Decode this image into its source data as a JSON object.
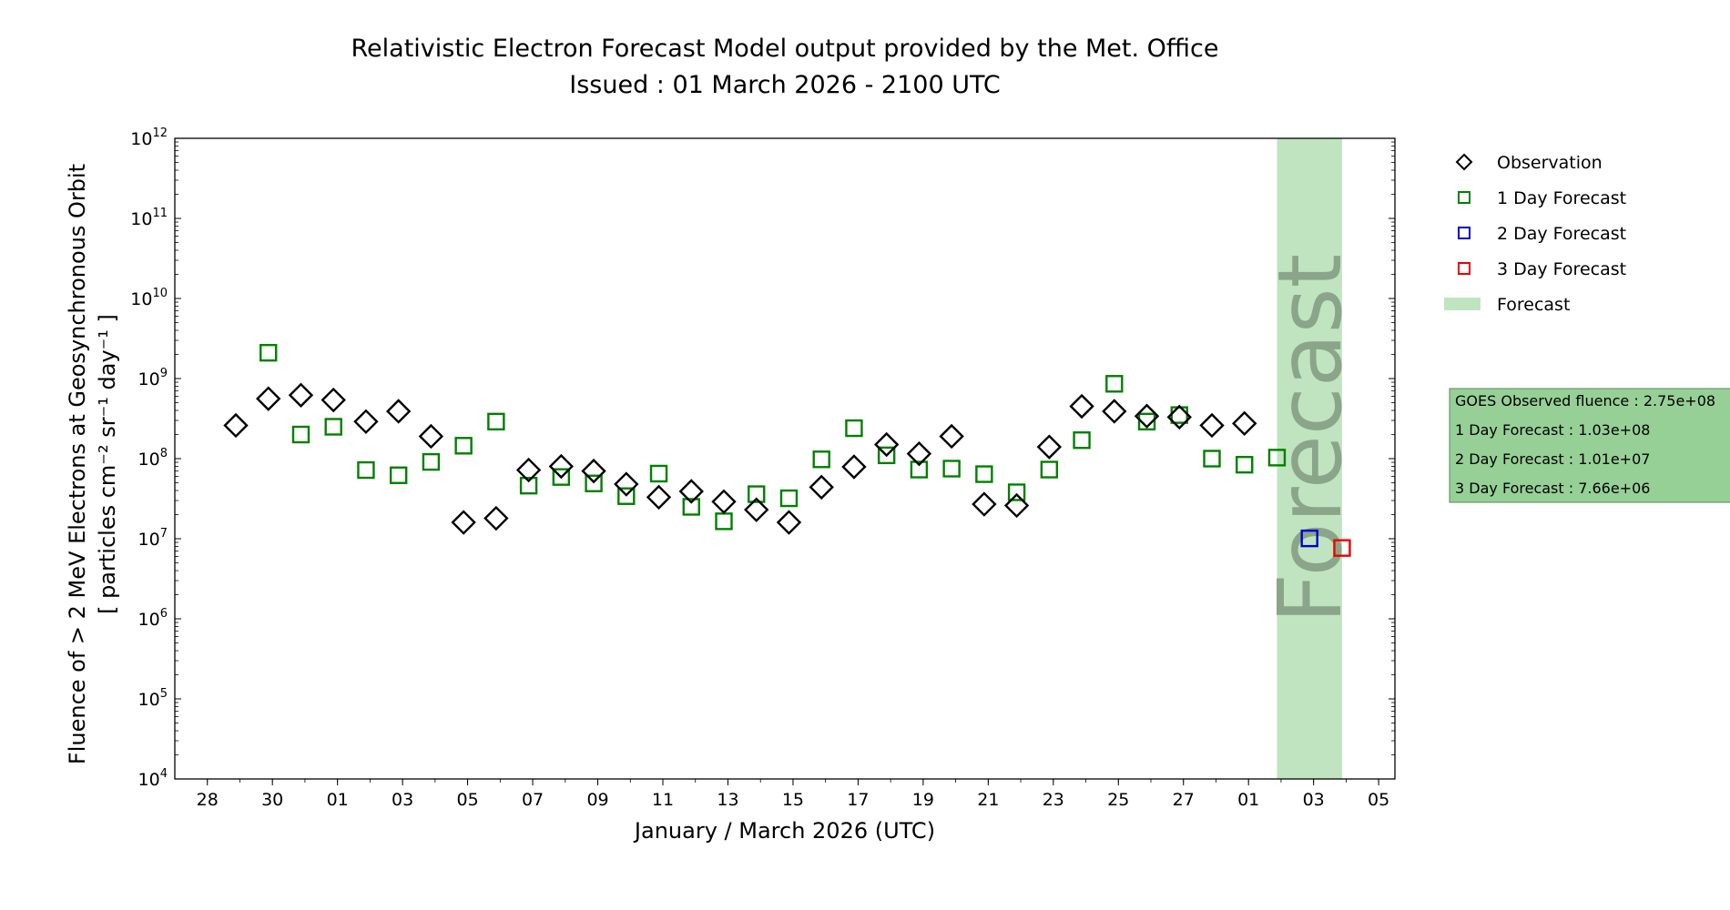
{
  "title": "Relativistic Electron Forecast Model output provided by the Met. Office",
  "subtitle": "Issued : 01 March 2026 - 2100 UTC",
  "watermark": "Forecast",
  "info_box": {
    "lines": [
      "GOES Observed fluence : 2.75e+08",
      "1 Day Forecast : 1.03e+08",
      "2 Day Forecast : 1.01e+07",
      "3 Day Forecast : 7.66e+06"
    ]
  },
  "colors": {
    "observation": "#000000",
    "day1": "#008000",
    "day2": "#0000cc",
    "day3": "#ee0000",
    "forecast_band": "#c0e4c0",
    "info_box_fill": "#96d096",
    "watermark": "#8aa58a"
  },
  "chart_data": {
    "type": "scatter",
    "xlabel": "January / March 2026 (UTC)",
    "ylabel_line1": "Fluence of > 2 MeV Electrons at Geosynchronous Orbit",
    "ylabel_line2": "[ particles cm⁻² sr⁻¹ day⁻¹ ]",
    "y_scale": "log",
    "ylim": [
      10000,
      1000000000000
    ],
    "y_ticks": [
      {
        "base": "10",
        "exp": "4"
      },
      {
        "base": "10",
        "exp": "5"
      },
      {
        "base": "10",
        "exp": "6"
      },
      {
        "base": "10",
        "exp": "7"
      },
      {
        "base": "10",
        "exp": "8"
      },
      {
        "base": "10",
        "exp": "9"
      },
      {
        "base": "10",
        "exp": "10"
      },
      {
        "base": "10",
        "exp": "11"
      },
      {
        "base": "10",
        "exp": "12"
      }
    ],
    "xlim": [
      "2026-01-27T00:00",
      "2026-03-05T12:00"
    ],
    "x_ticks": [
      {
        "date": "2026-01-28",
        "label": "28"
      },
      {
        "date": "2026-01-30",
        "label": "30"
      },
      {
        "date": "2026-02-01",
        "label": "01"
      },
      {
        "date": "2026-02-03",
        "label": "03"
      },
      {
        "date": "2026-02-05",
        "label": "05"
      },
      {
        "date": "2026-02-07",
        "label": "07"
      },
      {
        "date": "2026-02-09",
        "label": "09"
      },
      {
        "date": "2026-02-11",
        "label": "11"
      },
      {
        "date": "2026-02-13",
        "label": "13"
      },
      {
        "date": "2026-02-15",
        "label": "15"
      },
      {
        "date": "2026-02-17",
        "label": "17"
      },
      {
        "date": "2026-02-19",
        "label": "19"
      },
      {
        "date": "2026-02-21",
        "label": "21"
      },
      {
        "date": "2026-02-23",
        "label": "23"
      },
      {
        "date": "2026-02-25",
        "label": "25"
      },
      {
        "date": "2026-02-27",
        "label": "27"
      },
      {
        "date": "2026-03-01",
        "label": "01"
      },
      {
        "date": "2026-03-03",
        "label": "03"
      },
      {
        "date": "2026-03-05",
        "label": "05"
      }
    ],
    "forecast_region": [
      "2026-03-01T21:00",
      "2026-03-03T21:00"
    ],
    "legend": [
      {
        "label": "Observation",
        "marker": "diamond",
        "color": "#000000"
      },
      {
        "label": "1 Day Forecast",
        "marker": "square",
        "color": "#008000"
      },
      {
        "label": "2 Day Forecast",
        "marker": "square",
        "color": "#0000cc"
      },
      {
        "label": "3 Day Forecast",
        "marker": "square",
        "color": "#ee0000"
      },
      {
        "label": "Forecast",
        "marker": "band",
        "color": "#c0e4c0"
      }
    ],
    "series": [
      {
        "name": "Observation",
        "marker": "diamond",
        "color": "#000000",
        "points": [
          {
            "x": "2026-01-28T21:00",
            "y": 260000000.0
          },
          {
            "x": "2026-01-29T21:00",
            "y": 560000000.0
          },
          {
            "x": "2026-01-30T21:00",
            "y": 620000000.0
          },
          {
            "x": "2026-01-31T21:00",
            "y": 540000000.0
          },
          {
            "x": "2026-02-01T21:00",
            "y": 290000000.0
          },
          {
            "x": "2026-02-02T21:00",
            "y": 390000000.0
          },
          {
            "x": "2026-02-03T21:00",
            "y": 190000000.0
          },
          {
            "x": "2026-02-04T21:00",
            "y": 16000000.0
          },
          {
            "x": "2026-02-05T21:00",
            "y": 18000000.0
          },
          {
            "x": "2026-02-06T21:00",
            "y": 72000000.0
          },
          {
            "x": "2026-02-07T21:00",
            "y": 80000000.0
          },
          {
            "x": "2026-02-08T21:00",
            "y": 70000000.0
          },
          {
            "x": "2026-02-09T21:00",
            "y": 48000000.0
          },
          {
            "x": "2026-02-10T21:00",
            "y": 33000000.0
          },
          {
            "x": "2026-02-11T21:00",
            "y": 39000000.0
          },
          {
            "x": "2026-02-12T21:00",
            "y": 29000000.0
          },
          {
            "x": "2026-02-13T21:00",
            "y": 23000000.0
          },
          {
            "x": "2026-02-14T21:00",
            "y": 16000000.0
          },
          {
            "x": "2026-02-15T21:00",
            "y": 44000000.0
          },
          {
            "x": "2026-02-16T21:00",
            "y": 79000000.0
          },
          {
            "x": "2026-02-17T21:00",
            "y": 150000000.0
          },
          {
            "x": "2026-02-18T21:00",
            "y": 115000000.0
          },
          {
            "x": "2026-02-19T21:00",
            "y": 190000000.0
          },
          {
            "x": "2026-02-20T21:00",
            "y": 27000000.0
          },
          {
            "x": "2026-02-21T21:00",
            "y": 26000000.0
          },
          {
            "x": "2026-02-22T21:00",
            "y": 140000000.0
          },
          {
            "x": "2026-02-23T21:00",
            "y": 450000000.0
          },
          {
            "x": "2026-02-24T21:00",
            "y": 390000000.0
          },
          {
            "x": "2026-02-25T21:00",
            "y": 340000000.0
          },
          {
            "x": "2026-02-26T21:00",
            "y": 330000000.0
          },
          {
            "x": "2026-02-27T21:00",
            "y": 260000000.0
          },
          {
            "x": "2026-02-28T21:00",
            "y": 275000000.0
          }
        ]
      },
      {
        "name": "1 Day Forecast",
        "marker": "square",
        "color": "#008000",
        "points": [
          {
            "x": "2026-01-29T21:00",
            "y": 2100000000.0
          },
          {
            "x": "2026-01-30T21:00",
            "y": 200000000.0
          },
          {
            "x": "2026-01-31T21:00",
            "y": 250000000.0
          },
          {
            "x": "2026-02-01T21:00",
            "y": 72000000.0
          },
          {
            "x": "2026-02-02T21:00",
            "y": 62000000.0
          },
          {
            "x": "2026-02-03T21:00",
            "y": 91000000.0
          },
          {
            "x": "2026-02-04T21:00",
            "y": 145000000.0
          },
          {
            "x": "2026-02-05T21:00",
            "y": 290000000.0
          },
          {
            "x": "2026-02-06T21:00",
            "y": 46000000.0
          },
          {
            "x": "2026-02-07T21:00",
            "y": 59000000.0
          },
          {
            "x": "2026-02-08T21:00",
            "y": 49000000.0
          },
          {
            "x": "2026-02-09T21:00",
            "y": 34000000.0
          },
          {
            "x": "2026-02-10T21:00",
            "y": 65000000.0
          },
          {
            "x": "2026-02-11T21:00",
            "y": 25000000.0
          },
          {
            "x": "2026-02-12T21:00",
            "y": 16500000.0
          },
          {
            "x": "2026-02-13T21:00",
            "y": 36000000.0
          },
          {
            "x": "2026-02-14T21:00",
            "y": 32000000.0
          },
          {
            "x": "2026-02-15T21:00",
            "y": 98000000.0
          },
          {
            "x": "2026-02-16T21:00",
            "y": 240000000.0
          },
          {
            "x": "2026-02-17T21:00",
            "y": 110000000.0
          },
          {
            "x": "2026-02-18T21:00",
            "y": 73000000.0
          },
          {
            "x": "2026-02-19T21:00",
            "y": 75000000.0
          },
          {
            "x": "2026-02-20T21:00",
            "y": 64000000.0
          },
          {
            "x": "2026-02-21T21:00",
            "y": 38000000.0
          },
          {
            "x": "2026-02-22T21:00",
            "y": 73000000.0
          },
          {
            "x": "2026-02-23T21:00",
            "y": 170000000.0
          },
          {
            "x": "2026-02-24T21:00",
            "y": 860000000.0
          },
          {
            "x": "2026-02-25T21:00",
            "y": 290000000.0
          },
          {
            "x": "2026-02-26T21:00",
            "y": 350000000.0
          },
          {
            "x": "2026-02-27T21:00",
            "y": 100000000.0
          },
          {
            "x": "2026-02-28T21:00",
            "y": 84000000.0
          },
          {
            "x": "2026-03-01T21:00",
            "y": 103000000.0
          }
        ]
      },
      {
        "name": "2 Day Forecast",
        "marker": "square",
        "color": "#0000cc",
        "points": [
          {
            "x": "2026-03-02T21:00",
            "y": 10100000.0
          }
        ]
      },
      {
        "name": "3 Day Forecast",
        "marker": "square",
        "color": "#ee0000",
        "points": [
          {
            "x": "2026-03-03T21:00",
            "y": 7660000.0
          }
        ]
      }
    ]
  }
}
